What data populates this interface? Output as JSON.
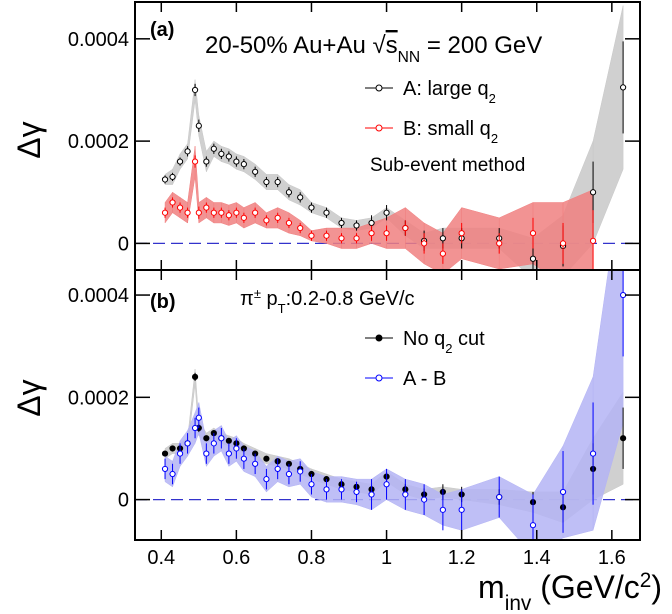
{
  "chart_data": [
    {
      "type": "scatter",
      "panel": "(a)",
      "annotation": [
        {
          "text": "20-50% Au+Au "
        },
        {
          "text": "√"
        },
        {
          "text": "s",
          "shift": "over"
        },
        {
          "text": "NN",
          "shift": "sub"
        },
        {
          "text": " = 200 GeV"
        }
      ],
      "note": "Sub-event method",
      "ylabel": "Δγ",
      "xlim": [
        0.33,
        1.675
      ],
      "xticks": [
        0.4,
        0.6,
        0.8,
        1,
        1.2,
        1.4,
        1.6
      ],
      "ylim": [
        -5.2e-05,
        0.000472
      ],
      "yticks": [
        0.0004,
        0.0002,
        0
      ],
      "refline": 0,
      "x": [
        0.41,
        0.43,
        0.45,
        0.47,
        0.49,
        0.5,
        0.52,
        0.54,
        0.56,
        0.58,
        0.6,
        0.62,
        0.65,
        0.68,
        0.71,
        0.74,
        0.77,
        0.8,
        0.84,
        0.88,
        0.92,
        0.96,
        1.0,
        1.05,
        1.1,
        1.15,
        1.2,
        1.3,
        1.39,
        1.47,
        1.55,
        1.63
      ],
      "series": [
        {
          "name": "A: large q",
          "name_sub": "2",
          "color": "#000000",
          "band_color": "#c8c8c8",
          "marker": "open",
          "values": [
            0.000125,
            0.00013,
            0.00016,
            0.00018,
            0.0003,
            0.00023,
            0.00016,
            0.000185,
            0.000175,
            0.00017,
            0.00016,
            0.000155,
            0.00014,
            0.00012,
            0.00012,
            0.0001,
            9e-05,
            7e-05,
            6e-05,
            4e-05,
            3.5e-05,
            4e-05,
            6e-05,
            3e-05,
            5e-06,
            1e-05,
            1e-05,
            1e-05,
            -3e-05,
            -5e-06,
            0.0001,
            0.000305
          ],
          "errors": [
            8e-06,
            8e-06,
            8e-06,
            1e-05,
            1.2e-05,
            1.2e-05,
            1e-05,
            1e-05,
            1e-05,
            1e-05,
            1e-05,
            1e-05,
            1e-05,
            1e-05,
            1e-05,
            1e-05,
            1e-05,
            1e-05,
            1e-05,
            1e-05,
            1e-05,
            1.5e-05,
            1.5e-05,
            1.5e-05,
            2e-05,
            2e-05,
            2e-05,
            2e-05,
            3e-05,
            4e-05,
            6e-05,
            9e-05
          ],
          "sys": [
            1e-05,
            1.5e-05,
            1.5e-05,
            1.5e-05,
            2e-05,
            2e-05,
            2e-05,
            1.5e-05,
            1.5e-05,
            1.5e-05,
            1.5e-05,
            1.5e-05,
            1.5e-05,
            1.5e-05,
            1.5e-05,
            1.5e-05,
            1.5e-05,
            1e-05,
            1e-05,
            1e-05,
            1e-05,
            1e-05,
            1e-05,
            1.5e-05,
            1.5e-05,
            2e-05,
            2e-05,
            2e-05,
            4e-05,
            6e-05,
            0.0001,
            0.00016
          ]
        },
        {
          "name": "B: small q",
          "name_sub": "2",
          "color": "#ff0000",
          "band_color": "#f08080",
          "marker": "open",
          "values": [
            6e-05,
            8e-05,
            7e-05,
            6e-05,
            0.00016,
            6e-05,
            7e-05,
            6e-05,
            6e-05,
            5.5e-05,
            6e-05,
            5e-05,
            6e-05,
            4.5e-05,
            5e-05,
            4e-05,
            3e-05,
            1.5e-05,
            1.5e-05,
            1e-05,
            1e-05,
            2e-05,
            2e-05,
            3e-05,
            0,
            -2e-05,
            2e-05,
            0,
            2e-05,
            0,
            5e-06,
            null
          ],
          "errors": [
            1e-05,
            1e-05,
            1e-05,
            1e-05,
            1.2e-05,
            1.2e-05,
            1e-05,
            1e-05,
            1e-05,
            1e-05,
            1e-05,
            1e-05,
            1e-05,
            1e-05,
            1e-05,
            1e-05,
            1e-05,
            1e-05,
            1e-05,
            1e-05,
            1e-05,
            1.5e-05,
            1.5e-05,
            1.5e-05,
            2e-05,
            2e-05,
            2e-05,
            2e-05,
            3e-05,
            4e-05,
            6e-05,
            null
          ],
          "sys": [
            2e-05,
            2e-05,
            2e-05,
            2e-05,
            3e-05,
            2e-05,
            2e-05,
            2e-05,
            2e-05,
            2e-05,
            2e-05,
            2e-05,
            2e-05,
            1.5e-05,
            2e-05,
            2e-05,
            1.5e-05,
            1e-05,
            1.5e-05,
            2e-05,
            2e-05,
            2e-05,
            3e-05,
            4e-05,
            4e-05,
            4e-05,
            5e-05,
            5e-05,
            6e-05,
            8e-05,
            0.0001,
            null
          ]
        }
      ]
    },
    {
      "type": "scatter",
      "panel": "(b)",
      "annotation": [
        {
          "text": "π"
        },
        {
          "text": "±",
          "shift": "super"
        },
        {
          "text": " p"
        },
        {
          "text": "T",
          "shift": "sub"
        },
        {
          "text": ":0.2-0.8 GeV/c"
        }
      ],
      "ylabel": "Δγ",
      "xlabel": [
        {
          "text": "m"
        },
        {
          "text": "inv",
          "shift": "sub"
        },
        {
          "text": " (GeV/c"
        },
        {
          "text": "2",
          "shift": "super"
        },
        {
          "text": ")"
        }
      ],
      "xlim": [
        0.33,
        1.675
      ],
      "xticks": [
        0.4,
        0.6,
        0.8,
        1,
        1.2,
        1.4,
        1.6
      ],
      "ylim": [
        -7.9e-05,
        0.000449
      ],
      "yticks": [
        0.0004,
        0.0002,
        0
      ],
      "refline": 0,
      "x": [
        0.41,
        0.43,
        0.45,
        0.47,
        0.49,
        0.5,
        0.52,
        0.54,
        0.56,
        0.58,
        0.6,
        0.62,
        0.65,
        0.68,
        0.71,
        0.74,
        0.77,
        0.8,
        0.84,
        0.88,
        0.92,
        0.96,
        1.0,
        1.05,
        1.1,
        1.15,
        1.2,
        1.3,
        1.39,
        1.47,
        1.55,
        1.63
      ],
      "series": [
        {
          "name": "No q",
          "name_sub": "2",
          "name_tail": " cut",
          "color": "#000000",
          "band_color": "#c8c8c8",
          "marker": "filled",
          "values": [
            9e-05,
            0.0001,
            0.0001,
            0.00011,
            0.00024,
            0.00014,
            0.00012,
            0.00013,
            0.00012,
            0.000115,
            0.00011,
            0.0001,
            9e-05,
            8e-05,
            7.5e-05,
            7e-05,
            6e-05,
            5e-05,
            4e-05,
            3e-05,
            2.5e-05,
            2e-05,
            4.5e-05,
            2e-05,
            1e-05,
            1.5e-05,
            1e-05,
            5e-06,
            -5e-06,
            -1.5e-05,
            6e-05,
            0.00012
          ],
          "errors": [
            5e-06,
            5e-06,
            5e-06,
            5e-06,
            8e-06,
            8e-06,
            5e-06,
            5e-06,
            5e-06,
            5e-06,
            5e-06,
            5e-06,
            5e-06,
            5e-06,
            5e-06,
            5e-06,
            5e-06,
            5e-06,
            5e-06,
            5e-06,
            5e-06,
            8e-06,
            8e-06,
            1e-05,
            1.2e-05,
            1.5e-05,
            1.5e-05,
            1.5e-05,
            2e-05,
            3e-05,
            5e-05,
            6e-05
          ],
          "sys": [
            1e-05,
            1e-05,
            1e-05,
            1e-05,
            1.5e-05,
            1.5e-05,
            1e-05,
            1e-05,
            1e-05,
            1e-05,
            1e-05,
            1e-05,
            1e-05,
            1e-05,
            1e-05,
            1e-05,
            1e-05,
            1e-05,
            1e-05,
            1e-05,
            1e-05,
            1e-05,
            1e-05,
            1e-05,
            1e-05,
            1e-05,
            1e-05,
            1.5e-05,
            2e-05,
            3e-05,
            6e-05,
            9e-05
          ]
        },
        {
          "name": "A - B",
          "color": "#0000ff",
          "band_color": "#b4b4f4",
          "marker": "open",
          "values": [
            6e-05,
            5e-05,
            9e-05,
            0.00011,
            0.00014,
            0.00016,
            9e-05,
            0.00011,
            0.00012,
            9e-05,
            0.0001,
            8e-05,
            7e-05,
            4e-05,
            6e-05,
            5e-05,
            5.5e-05,
            3e-05,
            2e-05,
            2e-05,
            1.5e-05,
            1e-05,
            3e-05,
            1e-05,
            0,
            -2e-05,
            -2e-05,
            5e-06,
            -5e-05,
            1.5e-05,
            9e-05,
            0.0004
          ],
          "errors": [
            2e-05,
            2e-05,
            2e-05,
            2e-05,
            2e-05,
            2e-05,
            2e-05,
            2e-05,
            2e-05,
            2e-05,
            2e-05,
            2e-05,
            2e-05,
            2e-05,
            2e-05,
            2e-05,
            2e-05,
            2e-05,
            2e-05,
            2e-05,
            2e-05,
            3e-05,
            3e-05,
            3e-05,
            3e-05,
            4e-05,
            4e-05,
            4e-05,
            6e-05,
            8e-05,
            0.0001,
            0.00012
          ],
          "sys": [
            2.5e-05,
            2.5e-05,
            2.5e-05,
            2.5e-05,
            3e-05,
            3e-05,
            2.5e-05,
            2.5e-05,
            2.5e-05,
            2.5e-05,
            2.5e-05,
            2.5e-05,
            2.5e-05,
            2.5e-05,
            2.5e-05,
            2.5e-05,
            2.5e-05,
            2.5e-05,
            2.5e-05,
            2.5e-05,
            2.5e-05,
            3e-05,
            3e-05,
            3e-05,
            3e-05,
            3e-05,
            4e-05,
            4e-05,
            6e-05,
            9e-05,
            0.00015,
            0.00025
          ]
        }
      ]
    }
  ]
}
